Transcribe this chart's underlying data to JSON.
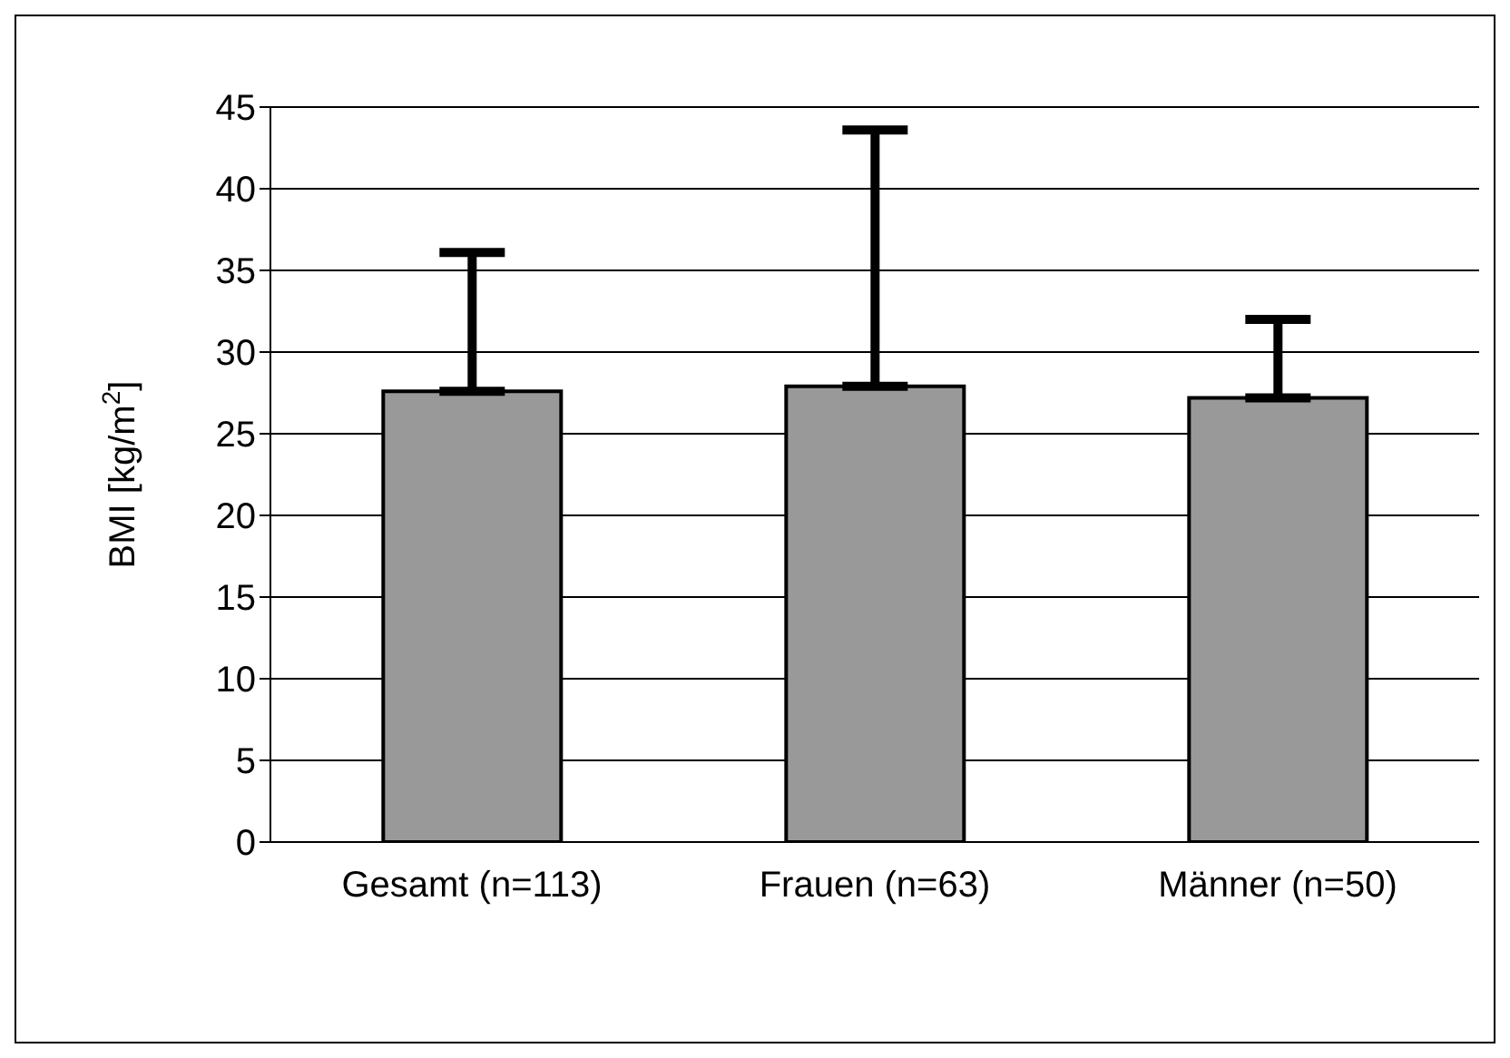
{
  "chart_data": {
    "type": "bar",
    "ylabel": "BMI [kg/m$^{2}$]",
    "categories": [
      "Gesamt (n=113)",
      "Frauen (n=63)",
      "Männer (n=50)"
    ],
    "values": [
      27.6,
      27.9,
      27.2
    ],
    "errors": [
      [
        27.6,
        36.1
      ],
      [
        27.9,
        43.6
      ],
      [
        27.2,
        32.0
      ]
    ],
    "color": "#999999",
    "ylim": [
      0,
      45
    ],
    "yticks": [
      0,
      5,
      10,
      15,
      20,
      25,
      30,
      35,
      40,
      45
    ],
    "grid": "y"
  }
}
